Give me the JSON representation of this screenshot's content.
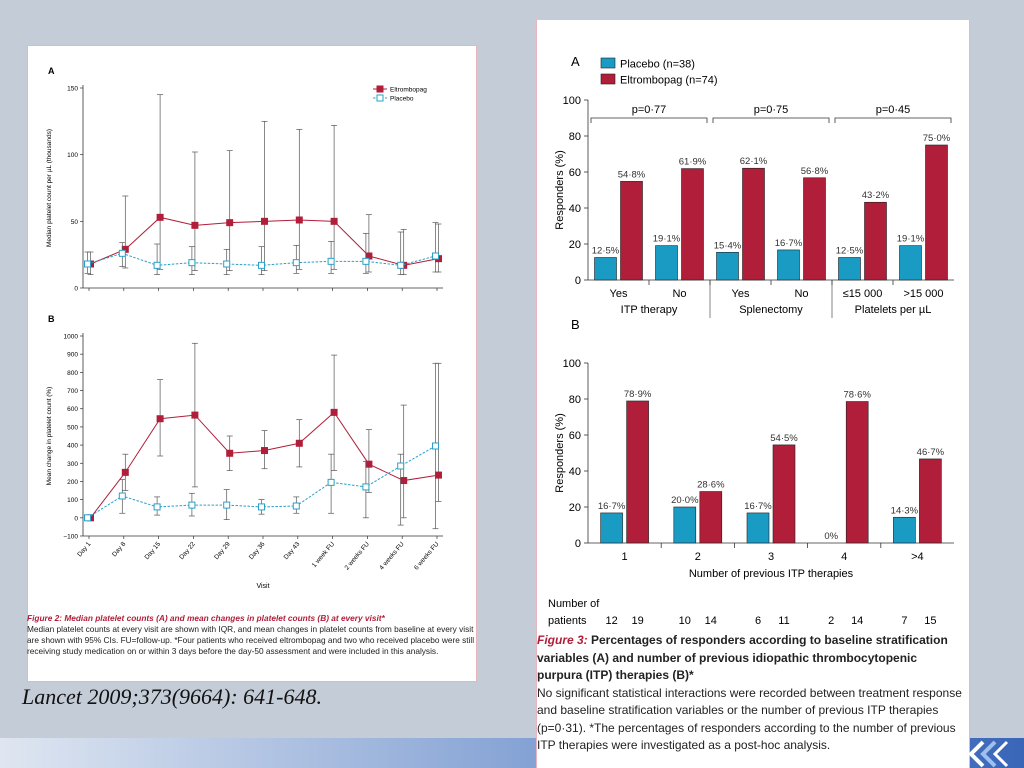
{
  "citation": "Lancet 2009;373(9664): 641-648.",
  "colors": {
    "eltrombopag": "#b01e3a",
    "placebo": "#2aa0c8",
    "bar_placebo": "#1a9bc4",
    "bar_eltro": "#b01e3a"
  },
  "figure2": {
    "caption_title": "Figure 2: Median platelet counts (A) and mean changes in platelet counts (B) at every visit*",
    "caption_body": "Median platelet counts at every visit are shown with IQR, and mean changes in platelet counts from baseline at every visit are shown with 95% CIs. FU=follow-up. *Four patients who received eltrombopag and two who received placebo were still receiving study medication on or within 3 days before the day-50 assessment and were included in this analysis."
  },
  "figure3": {
    "caption_fig": "Figure 3:",
    "caption_title": " Percentages of responders according to baseline stratification variables (A) and number of previous idiopathic thrombocytopenic purpura (ITP) therapies (B)*",
    "caption_body": "No significant statistical interactions were recorded between treatment response and baseline stratification variables or the number of previous ITP therapies (p=0·31). *The percentages of responders according to the number of previous ITP therapies were investigated as a post-hoc analysis."
  },
  "chart_data": [
    {
      "type": "line",
      "panel": "A",
      "ylabel": "Median platelet count per µL (thousands)",
      "xlabel": "",
      "ylim": [
        0,
        150
      ],
      "yticks": [
        0,
        50,
        100,
        150
      ],
      "legend_position": "top-right",
      "x": [
        "Day 1",
        "Day 8",
        "Day 15",
        "Day 22",
        "Day 29",
        "Day 36",
        "Day 43",
        "1 week FU",
        "2 weeks FU",
        "4 weeks FU",
        "6 weeks FU"
      ],
      "series": [
        {
          "name": "Eltrombopag",
          "values": [
            18,
            29,
            53,
            47,
            49,
            50,
            51,
            50,
            24,
            17,
            22
          ],
          "lower": [
            10,
            15,
            14,
            13,
            13,
            13,
            14,
            14,
            12,
            10,
            12
          ],
          "upper": [
            27,
            69,
            145,
            102,
            103,
            125,
            119,
            122,
            55,
            44,
            48
          ]
        },
        {
          "name": "Placebo",
          "values": [
            18,
            26,
            17,
            19,
            18,
            17,
            19,
            20,
            20,
            17,
            24
          ],
          "lower": [
            11,
            16,
            10,
            10,
            10,
            10,
            11,
            11,
            11,
            10,
            12
          ],
          "upper": [
            27,
            34,
            33,
            31,
            29,
            31,
            32,
            35,
            41,
            42,
            49
          ]
        }
      ]
    },
    {
      "type": "line",
      "panel": "B",
      "ylabel": "Mean change in platelet count (%)",
      "xlabel": "Visit",
      "ylim": [
        -100,
        1000
      ],
      "yticks": [
        -100,
        0,
        100,
        200,
        300,
        400,
        500,
        600,
        700,
        800,
        900,
        1000
      ],
      "x": [
        "Day 1",
        "Day 8",
        "Day 15",
        "Day 22",
        "Day 29",
        "Day 36",
        "Day 43",
        "1 week FU",
        "2 weeks FU",
        "4 weeks FU",
        "6 weeks FU"
      ],
      "series": [
        {
          "name": "Eltrombopag",
          "values": [
            0,
            250,
            545,
            565,
            355,
            370,
            410,
            580,
            295,
            205,
            235
          ],
          "lower": [
            0,
            150,
            340,
            170,
            260,
            270,
            280,
            260,
            140,
            0,
            90
          ],
          "upper": [
            0,
            350,
            760,
            960,
            450,
            480,
            540,
            895,
            485,
            620,
            850
          ]
        },
        {
          "name": "Placebo",
          "values": [
            0,
            120,
            60,
            70,
            70,
            60,
            65,
            195,
            170,
            285,
            395
          ],
          "lower": [
            0,
            25,
            15,
            10,
            -10,
            20,
            25,
            25,
            0,
            -40,
            -60
          ],
          "upper": [
            0,
            210,
            115,
            135,
            155,
            100,
            115,
            350,
            310,
            350,
            850
          ]
        }
      ]
    },
    {
      "type": "bar",
      "panel": "A",
      "ylabel": "Responders (%)",
      "ylim": [
        0,
        100
      ],
      "yticks": [
        0,
        20,
        40,
        60,
        80,
        100
      ],
      "legend": [
        "Placebo (n=38)",
        "Eltrombopag (n=74)"
      ],
      "categories": [
        "Yes",
        "No",
        "Yes",
        "No",
        "≤15 000",
        ">15 000"
      ],
      "groups": [
        {
          "label": "ITP therapy",
          "p": "p=0·77"
        },
        {
          "label": "Splenectomy",
          "p": "p=0·75"
        },
        {
          "label": "Platelets per µL",
          "p": "p=0·45"
        }
      ],
      "series": [
        {
          "name": "Placebo (n=38)",
          "values": [
            12.5,
            19.1,
            15.4,
            16.7,
            12.5,
            19.1
          ],
          "labels": [
            "12·5%",
            "19·1%",
            "15·4%",
            "16·7%",
            "12·5%",
            "19·1%"
          ]
        },
        {
          "name": "Eltrombopag (n=74)",
          "values": [
            54.8,
            61.9,
            62.1,
            56.8,
            43.2,
            75.0
          ],
          "labels": [
            "54·8%",
            "61·9%",
            "62·1%",
            "56·8%",
            "43·2%",
            "75·0%"
          ]
        }
      ]
    },
    {
      "type": "bar",
      "panel": "B",
      "ylabel": "Responders (%)",
      "xlabel": "Number of previous ITP therapies",
      "ylim": [
        0,
        100
      ],
      "yticks": [
        0,
        20,
        40,
        60,
        80,
        100
      ],
      "categories": [
        "1",
        "2",
        "3",
        "4",
        ">4"
      ],
      "patients_label": [
        "Number of",
        "patients"
      ],
      "patients": [
        [
          12,
          19
        ],
        [
          10,
          14
        ],
        [
          6,
          11
        ],
        [
          2,
          14
        ],
        [
          7,
          15
        ]
      ],
      "series": [
        {
          "name": "Placebo",
          "values": [
            16.7,
            20.0,
            16.7,
            0,
            14.3
          ],
          "labels": [
            "16·7%",
            "20·0%",
            "16·7%",
            "0%",
            "14·3%"
          ]
        },
        {
          "name": "Eltrombopag",
          "values": [
            78.9,
            28.6,
            54.5,
            78.6,
            46.7
          ],
          "labels": [
            "78·9%",
            "28·6%",
            "54·5%",
            "78·6%",
            "46·7%"
          ]
        }
      ]
    }
  ]
}
